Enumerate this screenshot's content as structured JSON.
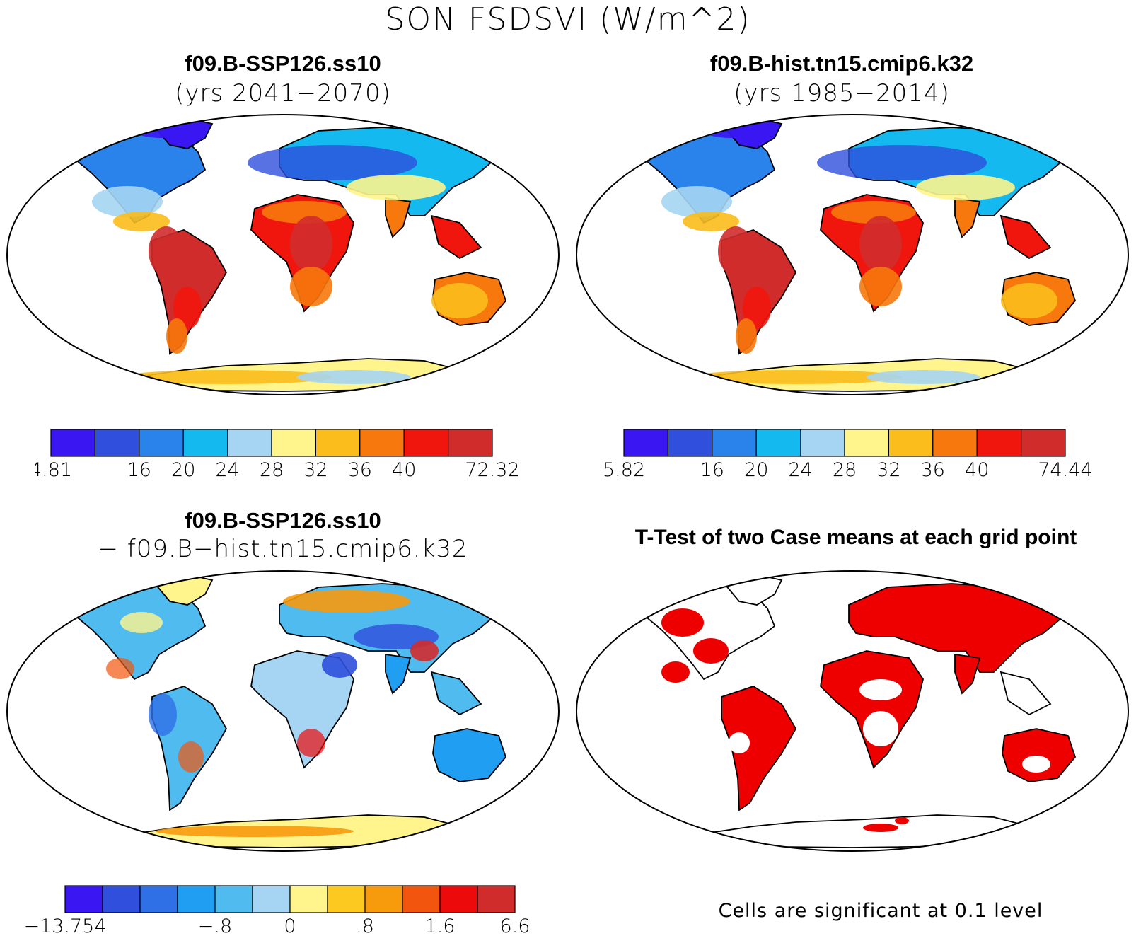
{
  "main_title": "SON FSDSVI (W/m^2)",
  "panels": [
    {
      "title": "f09.B-SSP126.ss10",
      "subtitle": "(yrs 2041−2070)"
    },
    {
      "title": "f09.B-hist.tn15.cmip6.k32",
      "subtitle": "(yrs 1985−2014)"
    },
    {
      "title": "f09.B-SSP126.ss10",
      "subtitle": "− f09.B−hist.tn15.cmip6.k32"
    },
    {
      "title": "T-Test of two Case means at each grid point",
      "subtitle": ""
    }
  ],
  "colorbars": [
    {
      "colors": [
        "#3a17f2",
        "#2f4fdc",
        "#2a83ea",
        "#13b9ef",
        "#a5d5f2",
        "#fff58c",
        "#fbbd1c",
        "#f7780c",
        "#f1160d",
        "#d02c2c"
      ],
      "labels": [
        "4.81",
        "",
        "16",
        "20",
        "24",
        "28",
        "32",
        "36",
        "40",
        "",
        "72.32"
      ]
    },
    {
      "colors": [
        "#3a17f2",
        "#2f4fdc",
        "#2a83ea",
        "#13b9ef",
        "#a5d5f2",
        "#fff58c",
        "#fbbd1c",
        "#f7780c",
        "#f1160d",
        "#d02c2c"
      ],
      "labels": [
        "5.82",
        "",
        "16",
        "20",
        "24",
        "28",
        "32",
        "36",
        "40",
        "",
        "74.44"
      ]
    },
    {
      "colors": [
        "#3a17f2",
        "#2f4fdc",
        "#3070e6",
        "#1f9ef2",
        "#4fbbef",
        "#a5d5f2",
        "#fff58c",
        "#fbc91f",
        "#f79a0c",
        "#f2550d",
        "#ed0a0a",
        "#d02c2c"
      ],
      "labels": [
        "−13.754",
        "",
        "",
        "",
        "−.8",
        "",
        "0",
        "",
        ".8",
        "",
        "1.6",
        "",
        "6.6"
      ]
    }
  ],
  "footnote": "Cells are significant at 0.1 level",
  "colors": {
    "land_warm": "#f7780c",
    "land_cool": "#2a83ea",
    "significant": "#ee0000"
  }
}
